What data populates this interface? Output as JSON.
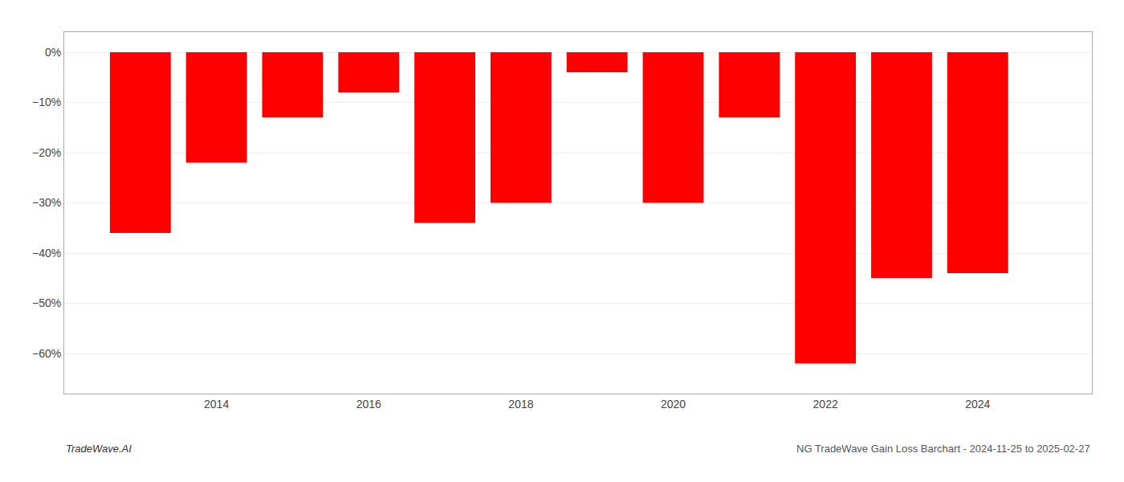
{
  "chart_data": {
    "type": "bar",
    "x": [
      2013,
      2014,
      2015,
      2016,
      2017,
      2018,
      2019,
      2020,
      2021,
      2022,
      2023,
      2024
    ],
    "values": [
      -36,
      -22,
      -13,
      -8,
      -34,
      -30,
      -4,
      -30,
      -13,
      -62,
      -45,
      -44
    ],
    "color": "#ff0000",
    "xlim": [
      2012.0,
      2025.5
    ],
    "xticks": [
      2014,
      2016,
      2018,
      2020,
      2022,
      2024
    ],
    "ylim": [
      -68,
      4
    ],
    "yticks": [
      {
        "value": 0,
        "label": "0%"
      },
      {
        "value": -10,
        "label": "−10%"
      },
      {
        "value": -20,
        "label": "−20%"
      },
      {
        "value": -30,
        "label": "−30%"
      },
      {
        "value": -40,
        "label": "−40%"
      },
      {
        "value": -50,
        "label": "−50%"
      },
      {
        "value": -60,
        "label": "−60%"
      }
    ],
    "grid": "y",
    "annotations": [
      "TradeWave.AI",
      "NG TradeWave Gain Loss Barchart - 2024-11-25 to 2025-02-27"
    ]
  }
}
